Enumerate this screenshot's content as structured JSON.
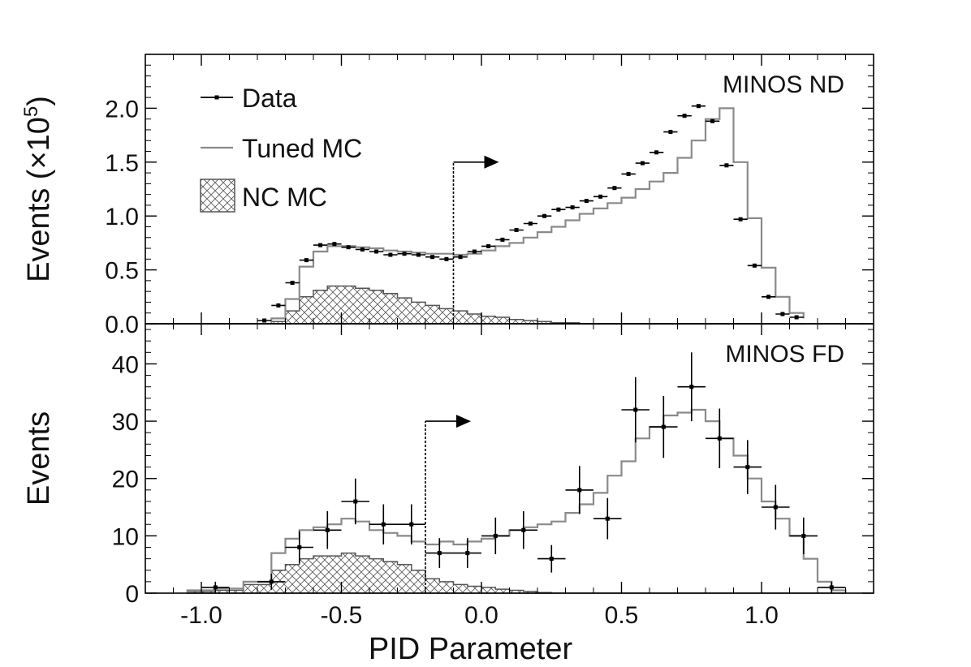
{
  "chart_data": {
    "type": "histogram",
    "shared_x": {
      "label": "PID Parameter",
      "range": [
        -1.2,
        1.4
      ],
      "ticks": [
        -1.0,
        -0.5,
        0.0,
        0.5,
        1.0
      ],
      "tick_labels": [
        "-1.0",
        "-0.5",
        "0.0",
        "0.5",
        "1.0"
      ]
    },
    "panels": [
      {
        "id": "nd",
        "label": "MINOS ND",
        "ylabel_main": "Events (×10",
        "ylabel_exp": "5",
        "ylabel_close": ")",
        "ylim": [
          0,
          2.5
        ],
        "yticks": [
          0.0,
          0.5,
          1.0,
          1.5,
          2.0
        ],
        "ytick_labels": [
          "0.0",
          "0.5",
          "1.0",
          "1.5",
          "2.0"
        ],
        "cut": {
          "x": -0.1,
          "y_top": 1.5
        },
        "bin_edges": [
          -0.75,
          -0.7,
          -0.65,
          -0.6,
          -0.55,
          -0.5,
          -0.45,
          -0.4,
          -0.35,
          -0.3,
          -0.25,
          -0.2,
          -0.15,
          -0.1,
          -0.05,
          0.0,
          0.05,
          0.1,
          0.15,
          0.2,
          0.25,
          0.3,
          0.35,
          0.4,
          0.45,
          0.5,
          0.55,
          0.6,
          0.65,
          0.7,
          0.75,
          0.8,
          0.85,
          0.9,
          0.95,
          1.0,
          1.05,
          1.1,
          1.15
        ],
        "tuned_mc": [
          0.05,
          0.23,
          0.53,
          0.67,
          0.72,
          0.72,
          0.71,
          0.7,
          0.68,
          0.67,
          0.66,
          0.65,
          0.65,
          0.64,
          0.65,
          0.68,
          0.72,
          0.75,
          0.8,
          0.85,
          0.9,
          0.96,
          1.02,
          1.07,
          1.12,
          1.17,
          1.25,
          1.32,
          1.4,
          1.54,
          1.7,
          1.9,
          2.0,
          1.5,
          0.98,
          0.52,
          0.25,
          0.1,
          0.05
        ],
        "nc_mc": [
          0.02,
          0.12,
          0.25,
          0.31,
          0.35,
          0.35,
          0.33,
          0.31,
          0.28,
          0.24,
          0.2,
          0.17,
          0.14,
          0.12,
          0.09,
          0.07,
          0.06,
          0.04,
          0.03,
          0.02,
          0.01,
          0.01,
          0.0,
          0.0,
          0.0,
          0.0,
          0.0,
          0.0,
          0.0,
          0.0,
          0.0,
          0.0,
          0.0,
          0.0,
          0.0,
          0.0,
          0.0,
          0.0,
          0.0
        ],
        "data_x": [
          -0.775,
          -0.725,
          -0.675,
          -0.625,
          -0.575,
          -0.525,
          -0.475,
          -0.425,
          -0.375,
          -0.325,
          -0.275,
          -0.225,
          -0.175,
          -0.125,
          -0.075,
          -0.025,
          0.025,
          0.075,
          0.125,
          0.175,
          0.225,
          0.275,
          0.325,
          0.375,
          0.425,
          0.475,
          0.525,
          0.575,
          0.625,
          0.675,
          0.725,
          0.775,
          0.825,
          0.875,
          0.925,
          0.975,
          1.025,
          1.075,
          1.125
        ],
        "data_y": [
          0.03,
          0.17,
          0.38,
          0.59,
          0.73,
          0.74,
          0.71,
          0.69,
          0.67,
          0.64,
          0.65,
          0.64,
          0.62,
          0.6,
          0.62,
          0.67,
          0.72,
          0.78,
          0.87,
          0.93,
          1.0,
          1.06,
          1.08,
          1.14,
          1.18,
          1.26,
          1.39,
          1.49,
          1.59,
          1.78,
          1.93,
          2.02,
          1.88,
          1.47,
          0.97,
          0.54,
          0.25,
          0.09,
          0.06
        ],
        "data_err": [],
        "legend": [
          {
            "label": "Data",
            "kind": "data"
          },
          {
            "label": "Tuned MC",
            "kind": "line"
          },
          {
            "label": "NC MC",
            "kind": "hatch"
          }
        ]
      },
      {
        "id": "fd",
        "label": "MINOS FD",
        "ylabel": "Events",
        "ylim": [
          0,
          47
        ],
        "yticks": [
          0,
          10,
          20,
          30,
          40
        ],
        "ytick_labels": [
          "0",
          "10",
          "20",
          "30",
          "40"
        ],
        "cut": {
          "x": -0.2,
          "y_top": 30
        },
        "bin_edges": [
          -1.05,
          -0.95,
          -0.85,
          -0.75,
          -0.7,
          -0.65,
          -0.6,
          -0.55,
          -0.5,
          -0.45,
          -0.4,
          -0.35,
          -0.3,
          -0.25,
          -0.2,
          -0.15,
          -0.1,
          -0.05,
          0.0,
          0.05,
          0.1,
          0.15,
          0.2,
          0.25,
          0.3,
          0.35,
          0.4,
          0.45,
          0.5,
          0.55,
          0.6,
          0.65,
          0.7,
          0.75,
          0.8,
          0.85,
          0.9,
          0.95,
          1.0,
          1.05,
          1.1,
          1.15,
          1.2,
          1.25,
          1.3
        ],
        "tuned_mc": [
          0.5,
          0.8,
          2.0,
          7.0,
          9.5,
          11.0,
          11.5,
          12.0,
          13.0,
          12.5,
          11.0,
          10.5,
          10.0,
          9.0,
          8.5,
          9.0,
          8.5,
          9.0,
          9.5,
          10.0,
          11.0,
          11.5,
          12.0,
          12.5,
          14.0,
          15.5,
          17.5,
          20.5,
          23.0,
          27.0,
          29.0,
          31.0,
          31.5,
          32.0,
          30.0,
          27.0,
          24.0,
          20.0,
          16.0,
          13.0,
          10.0,
          6.0,
          2.0,
          0.5
        ],
        "nc_mc": [
          0.3,
          0.5,
          1.5,
          4.0,
          5.0,
          6.0,
          6.5,
          6.5,
          7.0,
          6.5,
          6.0,
          5.5,
          5.0,
          4.0,
          2.5,
          2.0,
          1.5,
          1.2,
          1.0,
          0.7,
          0.5,
          0.3,
          0.1,
          0.0,
          0.0,
          0.0,
          0.0,
          0.0,
          0.0,
          0.0,
          0.0,
          0.0,
          0.0,
          0.0,
          0.0,
          0.0,
          0.0,
          0.0,
          0.0,
          0.0,
          0.0,
          0.0,
          0.0,
          0.0
        ],
        "data_x": [
          -0.95,
          -0.75,
          -0.65,
          -0.55,
          -0.45,
          -0.35,
          -0.25,
          -0.15,
          -0.05,
          0.05,
          0.15,
          0.25,
          0.35,
          0.45,
          0.55,
          0.65,
          0.75,
          0.85,
          0.95,
          1.05,
          1.15,
          1.25
        ],
        "data_y": [
          1,
          2,
          8,
          11,
          16,
          12,
          12,
          7,
          7,
          10,
          11,
          6,
          18,
          13,
          32,
          29,
          36,
          27,
          22,
          15,
          10,
          1
        ],
        "data_err": [
          1.0,
          1.4,
          2.8,
          3.3,
          4.0,
          3.5,
          3.5,
          2.6,
          2.6,
          3.2,
          3.3,
          2.4,
          4.2,
          3.6,
          5.7,
          5.4,
          6.0,
          5.2,
          4.7,
          3.9,
          3.2,
          1.0
        ]
      }
    ]
  }
}
